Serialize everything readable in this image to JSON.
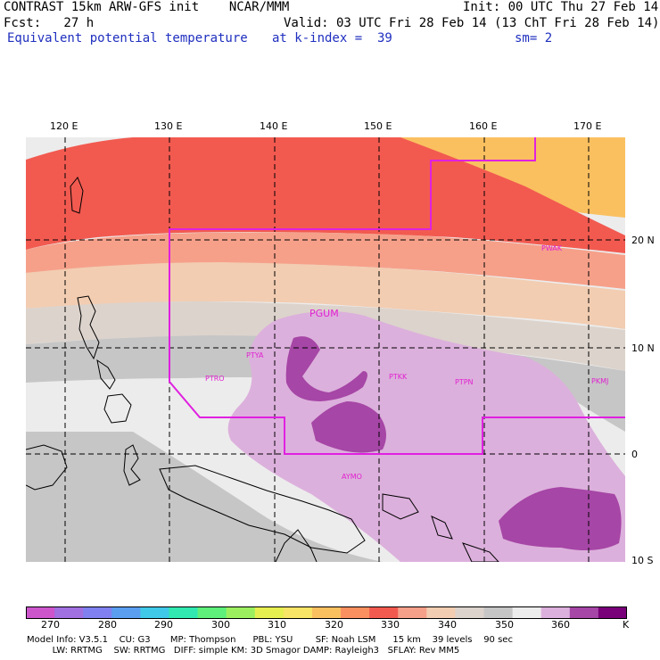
{
  "header": {
    "line1_left": "CONTRAST 15km ARW-GFS init    NCAR/MMM",
    "line1_right": "Init: 00 UTC Thu 27 Feb 14",
    "line2_left": "Fcst:   27 h",
    "line2_right": "Valid: 03 UTC Fri 28 Feb 14 (13 ChT Fri 28 Feb 14)",
    "field_name": "Equivalent potential temperature",
    "level": "at k-index =  39",
    "smoothing": "sm= 2"
  },
  "map": {
    "lon_labels": [
      "120 E",
      "130 E",
      "140 E",
      "150 E",
      "160 E",
      "170 E"
    ],
    "lat_labels": [
      "20 N",
      "10 N",
      "0",
      "10 S"
    ],
    "stations": [
      {
        "id": "PGUM"
      },
      {
        "id": "PTYA"
      },
      {
        "id": "PTRO"
      },
      {
        "id": "PTKK"
      },
      {
        "id": "PTPN"
      },
      {
        "id": "PKMJ"
      },
      {
        "id": "PWAK"
      },
      {
        "id": "AYMO"
      }
    ]
  },
  "colorbar": {
    "labels": [
      "270",
      "280",
      "290",
      "300",
      "310",
      "320",
      "330",
      "340",
      "350",
      "360",
      "K"
    ],
    "colors": [
      "#cc55cc",
      "#a070e0",
      "#8080f0",
      "#5a9ef0",
      "#40c8e8",
      "#30e8b0",
      "#5ef07a",
      "#9cf060",
      "#e6ef50",
      "#f8e466",
      "#fac060",
      "#fa9060",
      "#f25a50",
      "#f6a08a",
      "#f2cdb2",
      "#dcd3cc",
      "#c6c6c6",
      "#ececec",
      "#dcb0dc",
      "#a646a6",
      "#780078"
    ]
  },
  "footer": {
    "line1": "Model Info: V3.5.1    CU: G3       MP: Thompson      PBL: YSU        SF: Noah LSM      15 km    39 levels    90 sec",
    "line2": "         LW: RRTMG    SW: RRTMG   DIFF: simple KM: 3D Smagor DAMP: Rayleigh3   SFLAY: Rev MM5"
  }
}
